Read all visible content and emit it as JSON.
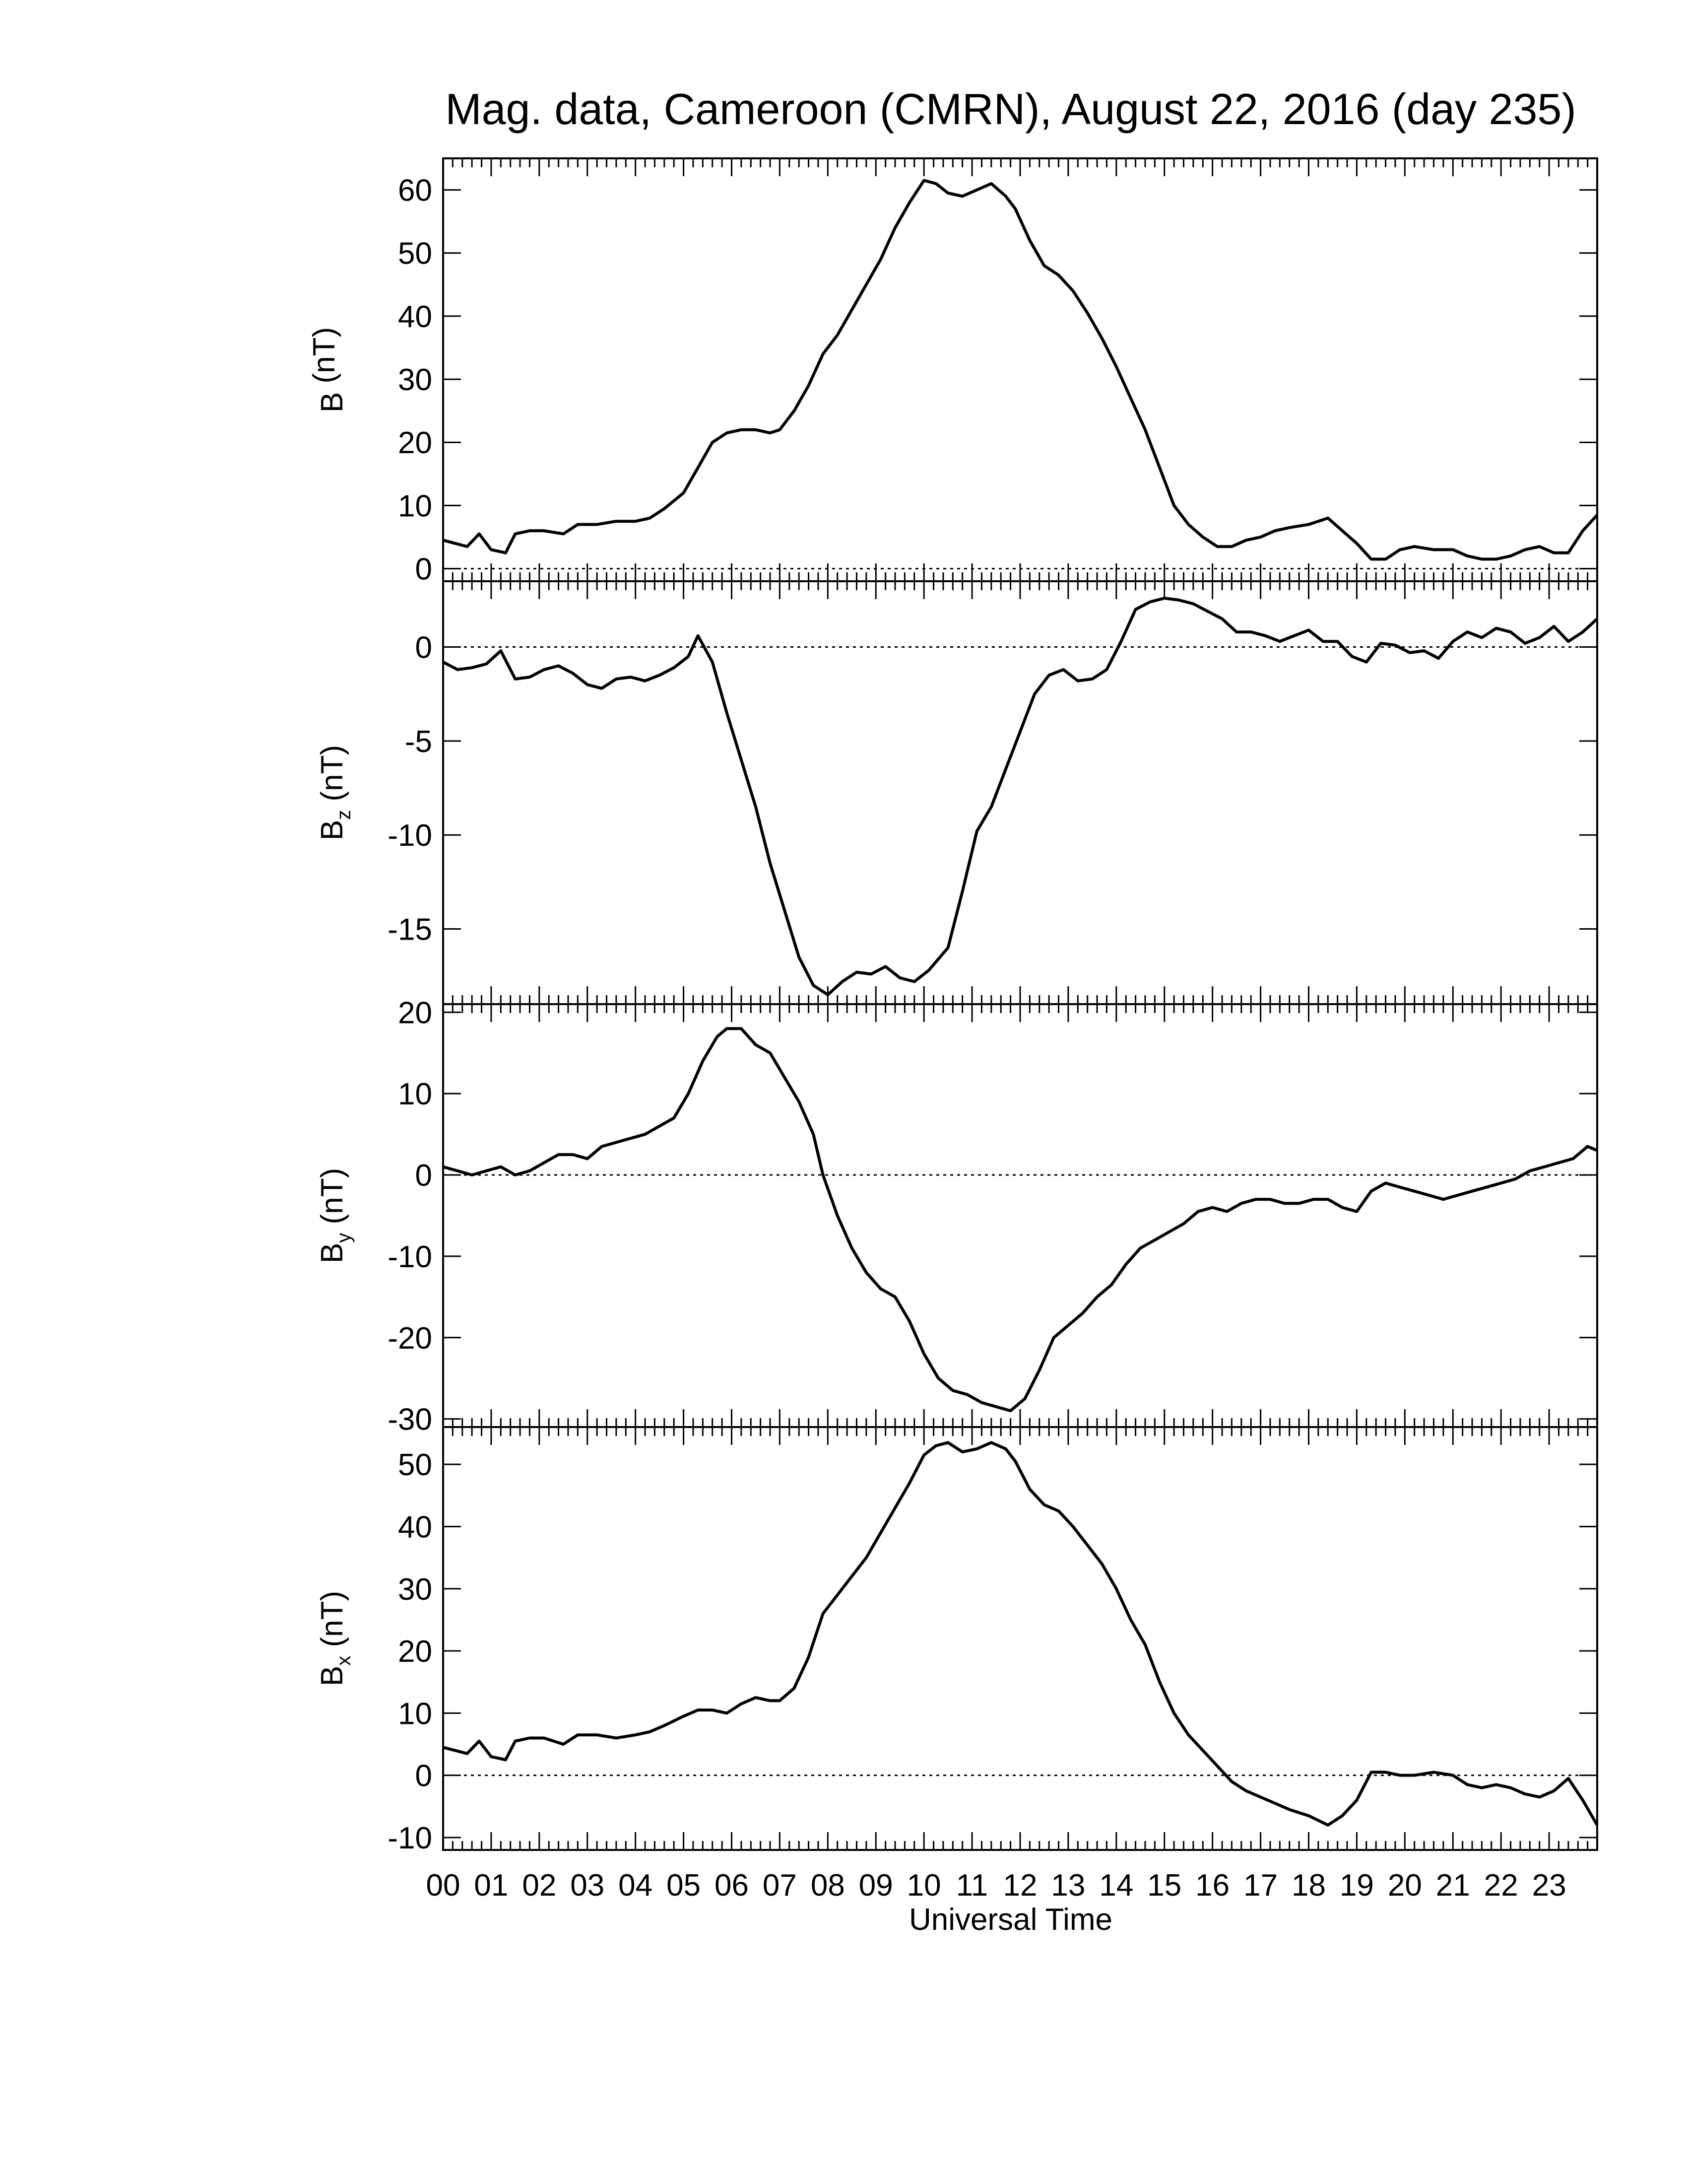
{
  "chart_data": {
    "type": "line",
    "title": "Mag. data, Cameroon (CMRN), August 22, 2016 (day 235)",
    "xlabel": "Universal Time",
    "x_unit": "hours UT",
    "xlim": [
      0,
      24
    ],
    "x_tick_labels": [
      "00",
      "01",
      "02",
      "03",
      "04",
      "05",
      "06",
      "07",
      "08",
      "09",
      "10",
      "11",
      "12",
      "13",
      "14",
      "15",
      "16",
      "17",
      "18",
      "19",
      "20",
      "21",
      "22",
      "23"
    ],
    "panels": [
      {
        "id": "B",
        "ylabel": "B (nT)",
        "ylabel_main": "B",
        "ylabel_sub": "",
        "ylabel_unit": " (nT)",
        "ylim": [
          -2,
          65
        ],
        "yticks": [
          0,
          10,
          20,
          30,
          40,
          50,
          60
        ],
        "ytick_labels": [
          "0",
          "10",
          "20",
          "30",
          "40",
          "50",
          "60"
        ],
        "zero_line": true,
        "x": [
          0,
          0.5,
          0.75,
          1.0,
          1.3,
          1.5,
          1.8,
          2.1,
          2.5,
          2.8,
          3.2,
          3.6,
          4.0,
          4.3,
          4.6,
          5.0,
          5.3,
          5.6,
          5.9,
          6.2,
          6.5,
          6.8,
          7.0,
          7.3,
          7.6,
          7.9,
          8.2,
          8.5,
          8.8,
          9.1,
          9.4,
          9.7,
          10.0,
          10.25,
          10.5,
          10.8,
          11.1,
          11.4,
          11.7,
          11.9,
          12.2,
          12.5,
          12.8,
          13.1,
          13.4,
          13.7,
          14.0,
          14.3,
          14.6,
          14.9,
          15.2,
          15.5,
          15.8,
          16.1,
          16.4,
          16.7,
          17.0,
          17.3,
          17.6,
          18.0,
          18.4,
          18.7,
          19.0,
          19.3,
          19.6,
          19.9,
          20.2,
          20.6,
          21.0,
          21.3,
          21.6,
          21.9,
          22.2,
          22.5,
          22.8,
          23.1,
          23.4,
          23.7,
          24.0
        ],
        "y": [
          4.5,
          3.5,
          5.5,
          3,
          2.5,
          5.5,
          6,
          6,
          5.5,
          7,
          7,
          7.5,
          7.5,
          8,
          9.5,
          12,
          16,
          20,
          21.5,
          22,
          22,
          21.5,
          22,
          25,
          29,
          34,
          37,
          41,
          45,
          49,
          54,
          58,
          61.5,
          61,
          59.5,
          59,
          60,
          61,
          59,
          57,
          52,
          48,
          46.5,
          44,
          40.5,
          36.5,
          32,
          27,
          22,
          16,
          10,
          7,
          5,
          3.5,
          3.5,
          4.5,
          5,
          6,
          6.5,
          7,
          8,
          6,
          4,
          1.5,
          1.5,
          3,
          3.5,
          3,
          3,
          2,
          1.5,
          1.5,
          2,
          3,
          3.5,
          2.5,
          2.5,
          6,
          8.5
        ]
      },
      {
        "id": "Bz",
        "ylabel": "Bz (nT)",
        "ylabel_main": "B",
        "ylabel_sub": "z",
        "ylabel_unit": " (nT)",
        "ylim": [
          -19,
          3.5
        ],
        "yticks": [
          0,
          -5,
          -10,
          -15
        ],
        "ytick_labels": [
          "0",
          "-5",
          "-10",
          "-15"
        ],
        "zero_line": true,
        "x": [
          0,
          0.3,
          0.6,
          0.9,
          1.2,
          1.5,
          1.8,
          2.1,
          2.4,
          2.7,
          3.0,
          3.3,
          3.6,
          3.9,
          4.2,
          4.5,
          4.8,
          5.1,
          5.3,
          5.6,
          5.9,
          6.2,
          6.5,
          6.8,
          7.1,
          7.4,
          7.7,
          8.0,
          8.3,
          8.6,
          8.9,
          9.2,
          9.5,
          9.8,
          10.1,
          10.5,
          10.8,
          11.1,
          11.4,
          11.7,
          12.0,
          12.3,
          12.6,
          12.9,
          13.2,
          13.5,
          13.8,
          14.1,
          14.4,
          14.7,
          15.0,
          15.3,
          15.6,
          15.9,
          16.2,
          16.5,
          16.8,
          17.1,
          17.4,
          17.7,
          18.0,
          18.3,
          18.6,
          18.9,
          19.2,
          19.5,
          19.8,
          20.1,
          20.4,
          20.7,
          21.0,
          21.3,
          21.6,
          21.9,
          22.2,
          22.5,
          22.8,
          23.1,
          23.4,
          23.7,
          24.0
        ],
        "y": [
          -0.8,
          -1.2,
          -1.1,
          -0.9,
          -0.2,
          -1.7,
          -1.6,
          -1.2,
          -1,
          -1.4,
          -2,
          -2.2,
          -1.7,
          -1.6,
          -1.8,
          -1.5,
          -1.1,
          -0.5,
          0.6,
          -0.8,
          -3.5,
          -6,
          -8.5,
          -11.5,
          -14,
          -16.5,
          -18,
          -18.5,
          -17.8,
          -17.3,
          -17.4,
          -17,
          -17.6,
          -17.8,
          -17.2,
          -16,
          -13,
          -9.8,
          -8.5,
          -6.5,
          -4.5,
          -2.5,
          -1.5,
          -1.2,
          -1.8,
          -1.7,
          -1.2,
          0.3,
          2,
          2.4,
          2.6,
          2.5,
          2.3,
          1.9,
          1.5,
          0.8,
          0.8,
          0.6,
          0.3,
          0.6,
          0.9,
          0.3,
          0.3,
          -0.5,
          -0.8,
          0.2,
          0.1,
          -0.3,
          -0.2,
          -0.6,
          0.3,
          0.8,
          0.5,
          1,
          0.8,
          0.2,
          0.5,
          1.1,
          0.3,
          0.8,
          1.5
        ]
      },
      {
        "id": "By",
        "ylabel": "By (nT)",
        "ylabel_main": "B",
        "ylabel_sub": "y",
        "ylabel_unit": " (nT)",
        "ylim": [
          -31,
          21
        ],
        "yticks": [
          20,
          10,
          0,
          -10,
          -20,
          -30
        ],
        "ytick_labels": [
          "20",
          "10",
          "0",
          "-10",
          "-20",
          "-30"
        ],
        "zero_line": true,
        "x": [
          0,
          0.3,
          0.6,
          0.9,
          1.2,
          1.5,
          1.8,
          2.1,
          2.4,
          2.7,
          3.0,
          3.3,
          3.6,
          3.9,
          4.2,
          4.5,
          4.8,
          5.1,
          5.4,
          5.7,
          5.9,
          6.2,
          6.5,
          6.8,
          7.1,
          7.4,
          7.7,
          7.9,
          8.2,
          8.5,
          8.8,
          9.1,
          9.4,
          9.7,
          10.0,
          10.3,
          10.6,
          10.9,
          11.2,
          11.5,
          11.8,
          12.1,
          12.4,
          12.7,
          13.0,
          13.3,
          13.6,
          13.9,
          14.2,
          14.5,
          14.8,
          15.1,
          15.4,
          15.7,
          16.0,
          16.3,
          16.6,
          16.9,
          17.2,
          17.5,
          17.8,
          18.1,
          18.4,
          18.7,
          19.0,
          19.3,
          19.6,
          19.9,
          20.2,
          20.5,
          20.8,
          21.1,
          21.4,
          21.7,
          22.0,
          22.3,
          22.6,
          22.9,
          23.2,
          23.5,
          23.8,
          24.0
        ],
        "y": [
          1,
          0.5,
          0,
          0.5,
          1,
          0,
          0.5,
          1.5,
          2.5,
          2.5,
          2,
          3.5,
          4,
          4.5,
          5,
          6,
          7,
          10,
          14,
          17,
          18,
          18,
          16,
          15,
          12,
          9,
          5,
          0,
          -5,
          -9,
          -12,
          -14,
          -15,
          -18,
          -22,
          -25,
          -26.5,
          -27,
          -28,
          -28.5,
          -29,
          -27.5,
          -24,
          -20,
          -18.5,
          -17,
          -15,
          -13.5,
          -11,
          -9,
          -8,
          -7,
          -6,
          -4.5,
          -4,
          -4.5,
          -3.5,
          -3,
          -3,
          -3.5,
          -3.5,
          -3,
          -3,
          -4,
          -4.5,
          -2,
          -1,
          -1.5,
          -2,
          -2.5,
          -3,
          -2.5,
          -2,
          -1.5,
          -1,
          -0.5,
          0.5,
          1,
          1.5,
          2,
          3.5,
          3
        ]
      },
      {
        "id": "Bx",
        "ylabel": "Bx (nT)",
        "ylabel_main": "B",
        "ylabel_sub": "x",
        "ylabel_unit": " (nT)",
        "ylim": [
          -12,
          56
        ],
        "yticks": [
          -10,
          0,
          10,
          20,
          30,
          40,
          50
        ],
        "ytick_labels": [
          "-10",
          "0",
          "10",
          "20",
          "30",
          "40",
          "50"
        ],
        "zero_line": true,
        "x": [
          0,
          0.5,
          0.75,
          1.0,
          1.3,
          1.5,
          1.8,
          2.1,
          2.5,
          2.8,
          3.2,
          3.6,
          4.0,
          4.3,
          4.6,
          5.0,
          5.3,
          5.6,
          5.9,
          6.2,
          6.5,
          6.8,
          7.0,
          7.3,
          7.6,
          7.9,
          8.2,
          8.5,
          8.8,
          9.1,
          9.4,
          9.7,
          10.0,
          10.25,
          10.5,
          10.8,
          11.1,
          11.4,
          11.7,
          11.9,
          12.2,
          12.5,
          12.8,
          13.1,
          13.4,
          13.7,
          14.0,
          14.3,
          14.6,
          14.9,
          15.2,
          15.5,
          15.8,
          16.1,
          16.4,
          16.7,
          17.0,
          17.3,
          17.6,
          18.0,
          18.4,
          18.7,
          19.0,
          19.3,
          19.6,
          19.9,
          20.2,
          20.6,
          21.0,
          21.3,
          21.6,
          21.9,
          22.2,
          22.5,
          22.8,
          23.1,
          23.4,
          23.7,
          24.0
        ],
        "y": [
          4.5,
          3.5,
          5.5,
          3,
          2.5,
          5.5,
          6,
          6,
          5,
          6.5,
          6.5,
          6,
          6.5,
          7,
          8,
          9.5,
          10.5,
          10.5,
          10,
          11.5,
          12.5,
          12,
          12,
          14,
          19,
          26,
          29,
          32,
          35,
          39,
          43,
          47,
          51.5,
          53,
          53.5,
          52,
          52.5,
          53.5,
          52.5,
          50.5,
          46,
          43.5,
          42.5,
          40,
          37,
          34,
          30,
          25,
          21,
          15,
          10,
          6.5,
          4,
          1.5,
          -1,
          -2.5,
          -3.5,
          -4.5,
          -5.5,
          -6.5,
          -8,
          -6.5,
          -4,
          0.5,
          0.5,
          0,
          0,
          0.5,
          0,
          -1.5,
          -2,
          -1.5,
          -2,
          -3,
          -3.5,
          -2.5,
          -0.5,
          -4,
          -8
        ]
      }
    ]
  }
}
